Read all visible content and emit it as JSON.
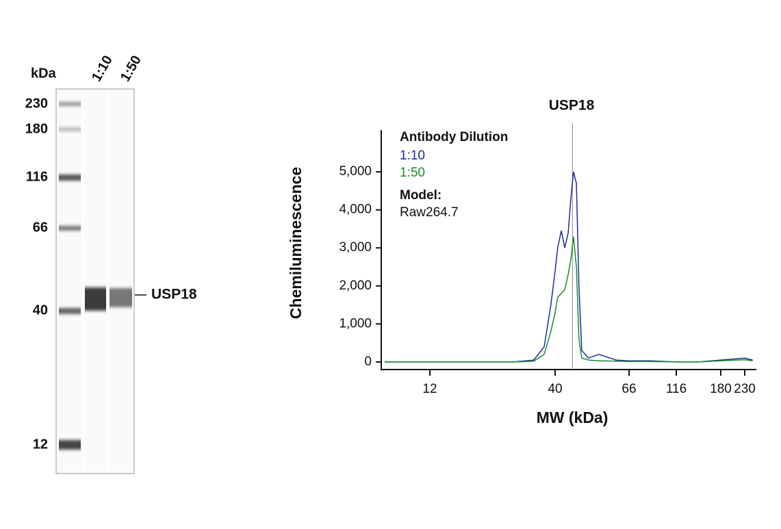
{
  "blot": {
    "unit_label": "kDa",
    "lanes": [
      "1:10",
      "1:50"
    ],
    "markers": [
      230,
      180,
      116,
      66,
      40,
      12
    ],
    "band_label": "USP18"
  },
  "chart_data": {
    "type": "line",
    "title": "USP18",
    "y_label": "Chemiluminescence",
    "x_label": "MW (kDa)",
    "legend_title": "Antibody Dilution",
    "model_label": "Model:",
    "model": "Raw264.7",
    "x": [
      7.7,
      10.0,
      13.9,
      19.3,
      26.7,
      32.6,
      36.0,
      38.4,
      40,
      40.7,
      41.7,
      42.7,
      43.7,
      44.5,
      45.3,
      46.2,
      47.0,
      47.9,
      50.2,
      53.8,
      60.4,
      66,
      85,
      116,
      144,
      180,
      230,
      250
    ],
    "series": [
      {
        "name": "1:10",
        "color": "#1f2a9e",
        "values": [
          0,
          0,
          0,
          0,
          0,
          50,
          400,
          1500,
          2400,
          3000,
          3450,
          3000,
          3400,
          4300,
          5000,
          4700,
          2000,
          300,
          100,
          200,
          50,
          30,
          30,
          0,
          0,
          50,
          100,
          50
        ]
      },
      {
        "name": "1:50",
        "color": "#1a8a2a",
        "values": [
          0,
          0,
          0,
          0,
          0,
          20,
          200,
          800,
          1300,
          1700,
          1800,
          1900,
          2300,
          2700,
          3300,
          2500,
          600,
          100,
          50,
          30,
          20,
          10,
          10,
          0,
          0,
          30,
          60,
          30
        ]
      }
    ],
    "xscale": "log",
    "xlim": [
      7.5,
      260
    ],
    "xticks": [
      12,
      40,
      66,
      116,
      180,
      230
    ],
    "ylim": [
      -200,
      6100
    ],
    "yticks": [
      0,
      {
        "value": 1000,
        "label": "1,000"
      },
      {
        "value": 2000,
        "label": "2,000"
      },
      {
        "value": 3000,
        "label": "3,000"
      },
      {
        "value": 4000,
        "label": "4,000"
      },
      {
        "value": 5000,
        "label": "5,000"
      }
    ],
    "reference_x": 45
  }
}
